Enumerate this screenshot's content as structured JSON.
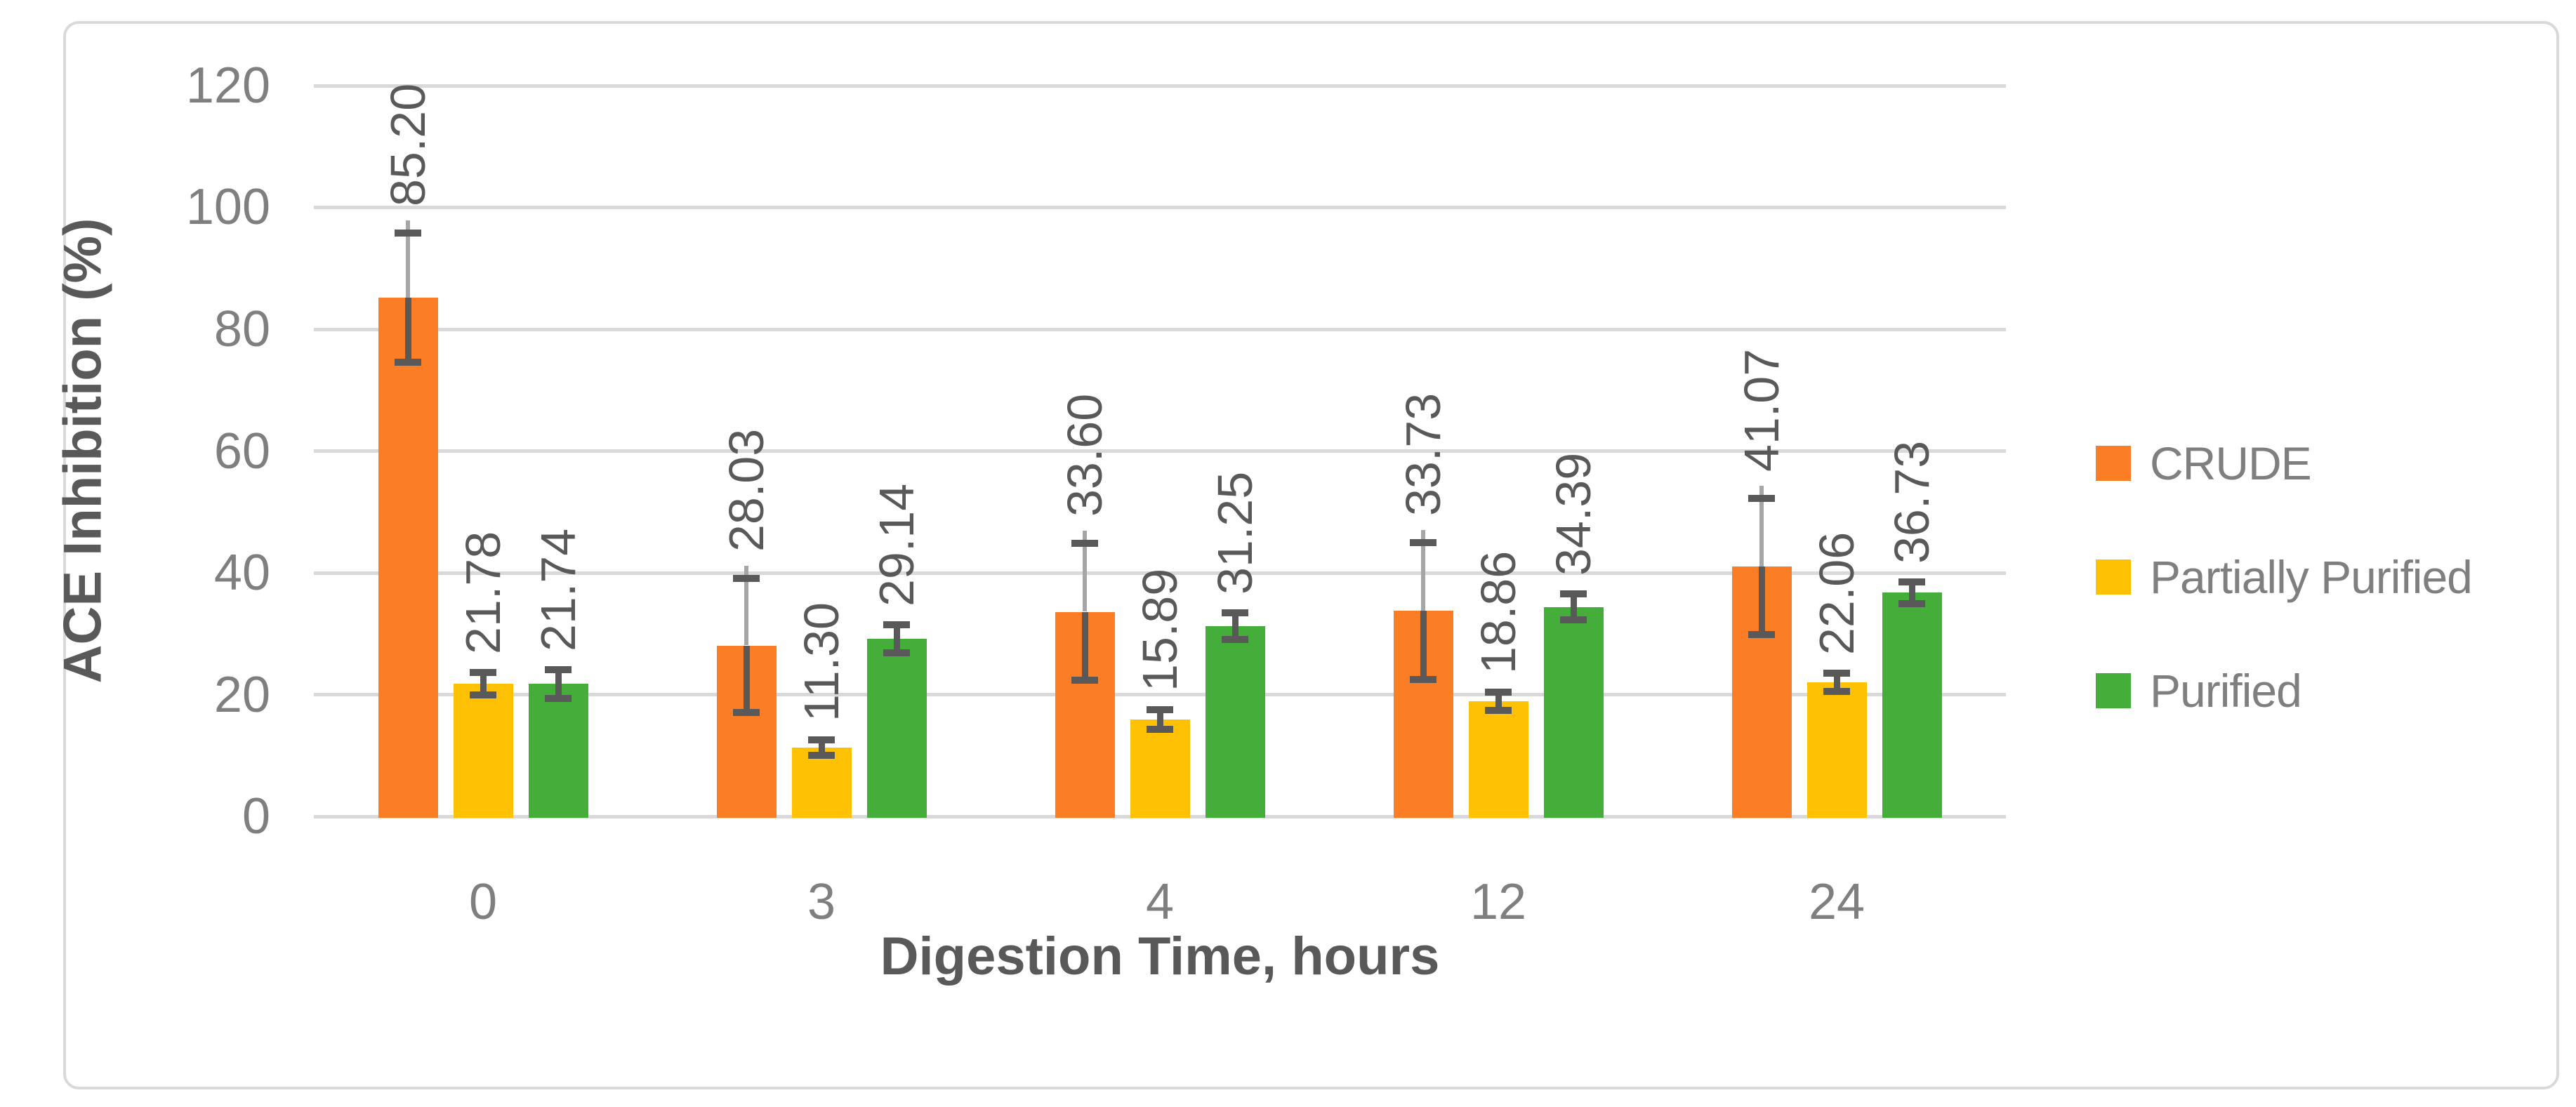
{
  "figure": {
    "background": "#FFFFFF",
    "border_color": "#D9D9D9"
  },
  "chart_data": {
    "type": "bar",
    "title": "",
    "xlabel": "Digestion Time, hours",
    "ylabel": "ACE Inhibition (%)",
    "categories": [
      "0",
      "3",
      "4",
      "12",
      "24"
    ],
    "y_ticks": [
      "0",
      "20",
      "40",
      "60",
      "80",
      "100",
      "120"
    ],
    "ylim": [
      0,
      120
    ],
    "grid": true,
    "legend_position": "right",
    "series": [
      {
        "name": "CRUDE",
        "color": "#FB7D26",
        "values": [
          85.2,
          28.03,
          33.6,
          33.73,
          41.07
        ],
        "labels": [
          "85.20",
          "28.03",
          "33.60",
          "33.73",
          "41.07"
        ],
        "errors": [
          10.6,
          11.0,
          11.2,
          11.2,
          11.2
        ],
        "error_style": "light-upper"
      },
      {
        "name": "Partially Purified",
        "color": "#FFC103",
        "values": [
          21.78,
          11.3,
          15.89,
          18.86,
          22.06
        ],
        "labels": [
          "21.78",
          "11.30",
          "15.89",
          "18.86",
          "22.06"
        ],
        "errors": [
          1.8,
          1.3,
          1.6,
          1.5,
          1.5
        ],
        "error_style": "dark"
      },
      {
        "name": "Purified",
        "color": "#45AE3A",
        "values": [
          21.74,
          29.14,
          31.25,
          34.39,
          36.73
        ],
        "labels": [
          "21.74",
          "29.14",
          "31.25",
          "34.39",
          "36.73"
        ],
        "errors": [
          2.4,
          2.3,
          2.2,
          2.1,
          1.8
        ],
        "error_style": "dark"
      }
    ],
    "colors": {
      "data_label": "#595959",
      "tick_label": "#7F7F7F",
      "axis_title": "#595959",
      "gridline": "#D9D9D9",
      "error_bar_dark": "#595959",
      "error_bar_light": "#A6A6A6"
    }
  }
}
